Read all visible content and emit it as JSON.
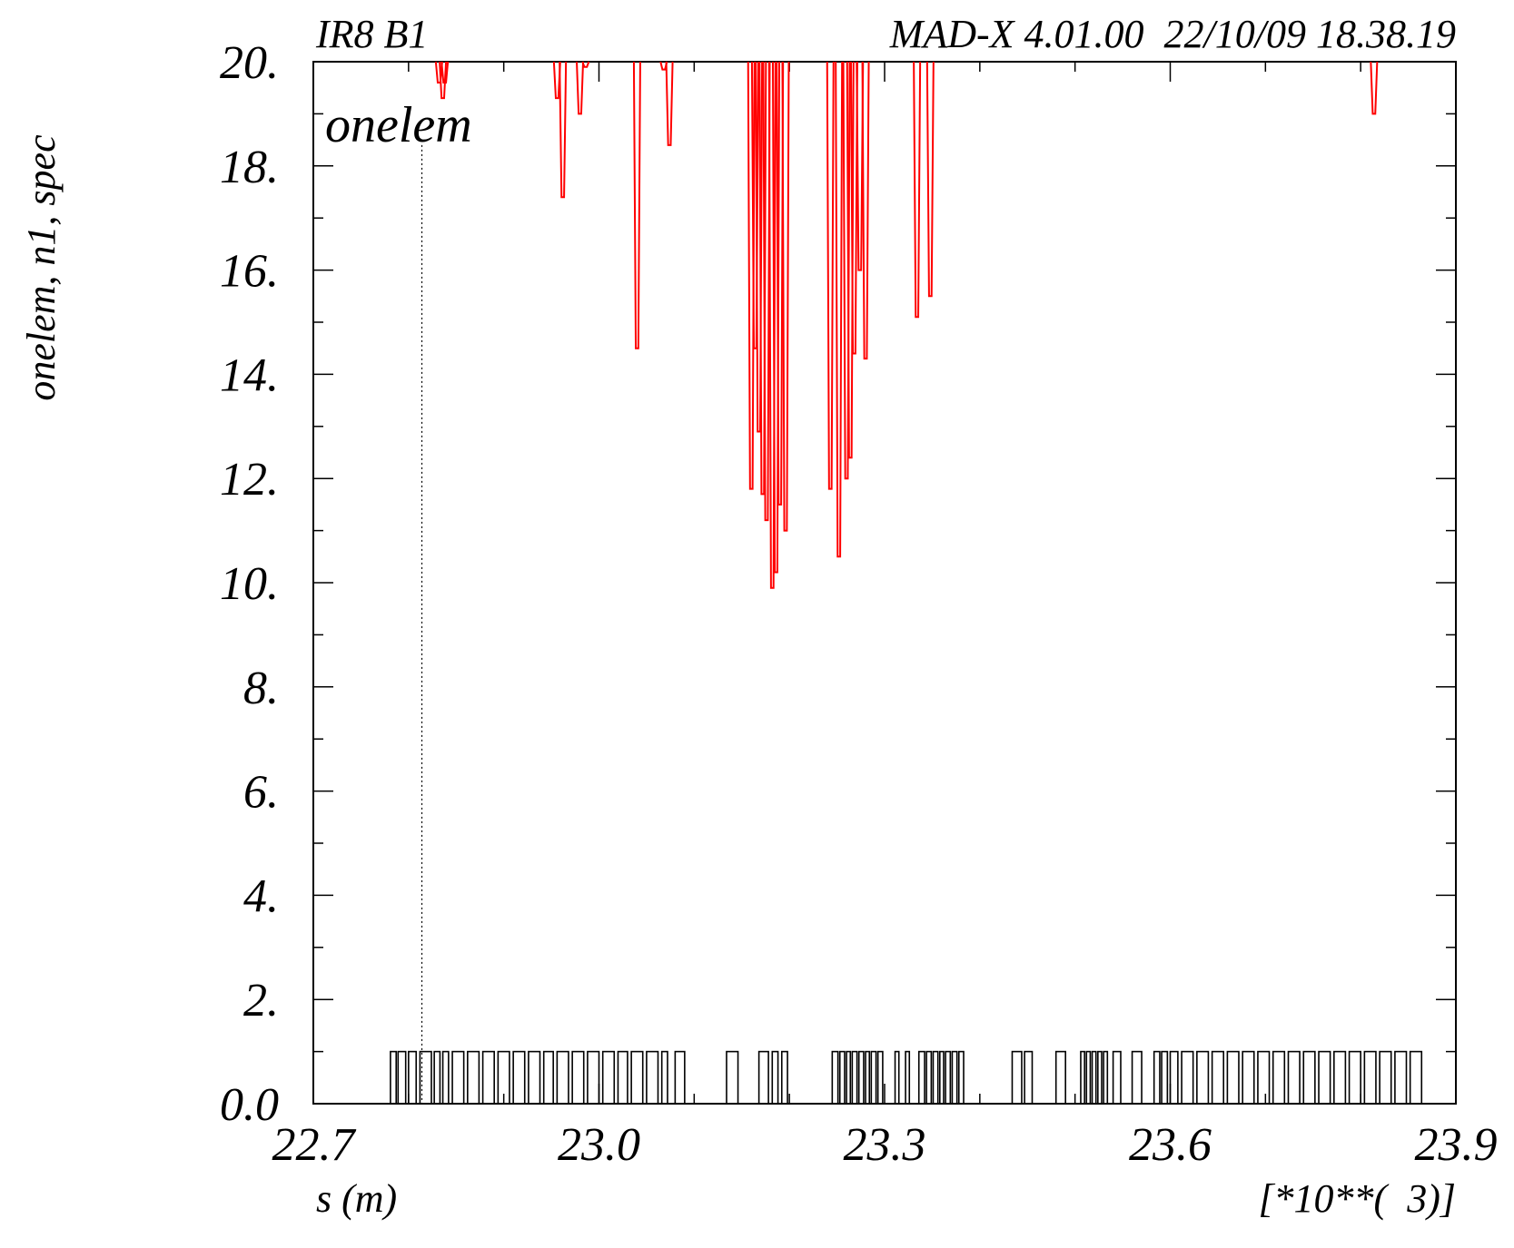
{
  "header": {
    "left_label": "IR8 B1",
    "right_label": "MAD-X 4.01.00  22/10/09 18.38.19"
  },
  "chart_data": {
    "type": "line",
    "title": "",
    "annotation": "onelem",
    "xlabel": "s (m)",
    "ylabel": "onelem, n1, spec",
    "x_scale_label": "[*10**(  3)]",
    "xlim": [
      22.7,
      23.9
    ],
    "ylim": [
      0,
      20
    ],
    "x_ticks": [
      "22.7",
      "23.0",
      "23.3",
      "23.6",
      "23.9"
    ],
    "x_tick_values": [
      22.7,
      23.0,
      23.3,
      23.6,
      23.9
    ],
    "y_ticks": [
      "0.0",
      "2.",
      "4.",
      "6.",
      "8.",
      "10.",
      "12.",
      "14.",
      "16.",
      "18.",
      "20."
    ],
    "y_tick_values": [
      0,
      2,
      4,
      6,
      8,
      10,
      12,
      14,
      16,
      18,
      20
    ],
    "grid": false,
    "marker_line_x": 22.814,
    "colors": {
      "n1": "#ff0000",
      "onelem": "#000000",
      "axes": "#000000"
    },
    "series": [
      {
        "key": "n1",
        "dips": [
          [
            22.832,
            19.6
          ],
          [
            22.836,
            19.3
          ],
          [
            22.838,
            19.6
          ],
          [
            22.956,
            19.3
          ],
          [
            22.962,
            17.4
          ],
          [
            22.98,
            19.0
          ],
          [
            22.986,
            19.9
          ],
          [
            23.04,
            14.5
          ],
          [
            23.068,
            19.85
          ],
          [
            23.074,
            18.4
          ],
          [
            23.16,
            11.8
          ],
          [
            23.164,
            14.5
          ],
          [
            23.168,
            12.9
          ],
          [
            23.172,
            11.7
          ],
          [
            23.176,
            11.2
          ],
          [
            23.182,
            9.9
          ],
          [
            23.186,
            10.2
          ],
          [
            23.19,
            11.5
          ],
          [
            23.196,
            11.0
          ],
          [
            23.243,
            11.8
          ],
          [
            23.252,
            10.5
          ],
          [
            23.26,
            12.0
          ],
          [
            23.264,
            12.4
          ],
          [
            23.268,
            14.4
          ],
          [
            23.274,
            16.0
          ],
          [
            23.28,
            14.3
          ],
          [
            23.334,
            15.1
          ],
          [
            23.348,
            15.5
          ]
        ],
        "extra_dips": [
          [
            23.814,
            19.0
          ]
        ]
      },
      {
        "key": "onelem",
        "element_spans": [
          [
            22.781,
            22.787
          ],
          [
            22.789,
            22.797
          ],
          [
            22.8,
            22.808
          ],
          [
            22.812,
            22.824
          ],
          [
            22.827,
            22.833
          ],
          [
            22.836,
            22.842
          ],
          [
            22.846,
            22.858
          ],
          [
            22.862,
            22.874
          ],
          [
            22.878,
            22.89
          ],
          [
            22.894,
            22.906
          ],
          [
            22.91,
            22.922
          ],
          [
            22.926,
            22.938
          ],
          [
            22.942,
            22.952
          ],
          [
            22.956,
            22.968
          ],
          [
            22.972,
            22.984
          ],
          [
            22.988,
            23.0
          ],
          [
            23.004,
            23.016
          ],
          [
            23.02,
            23.03
          ],
          [
            23.034,
            23.046
          ],
          [
            23.05,
            23.062
          ],
          [
            23.066,
            23.072
          ],
          [
            23.08,
            23.09
          ],
          [
            23.134,
            23.146
          ],
          [
            23.168,
            23.178
          ],
          [
            23.182,
            23.188
          ],
          [
            23.192,
            23.198
          ],
          [
            23.245,
            23.251
          ],
          [
            23.253,
            23.258
          ],
          [
            23.26,
            23.264
          ],
          [
            23.266,
            23.271
          ],
          [
            23.273,
            23.278
          ],
          [
            23.28,
            23.284
          ],
          [
            23.286,
            23.291
          ],
          [
            23.293,
            23.298
          ],
          [
            23.311,
            23.315
          ],
          [
            23.322,
            23.326
          ],
          [
            23.336,
            23.342
          ],
          [
            23.344,
            23.349
          ],
          [
            23.351,
            23.356
          ],
          [
            23.358,
            23.362
          ],
          [
            23.364,
            23.369
          ],
          [
            23.371,
            23.376
          ],
          [
            23.378,
            23.383
          ],
          [
            23.434,
            23.444
          ],
          [
            23.447,
            23.455
          ],
          [
            23.48,
            23.49
          ],
          [
            23.506,
            23.51
          ],
          [
            23.512,
            23.516
          ],
          [
            23.518,
            23.522
          ],
          [
            23.524,
            23.528
          ],
          [
            23.53,
            23.534
          ],
          [
            23.54,
            23.548
          ],
          [
            23.56,
            23.57
          ],
          [
            23.583,
            23.589
          ],
          [
            23.591,
            23.597
          ],
          [
            23.6,
            23.608
          ],
          [
            23.612,
            23.624
          ],
          [
            23.628,
            23.64
          ],
          [
            23.644,
            23.656
          ],
          [
            23.66,
            23.672
          ],
          [
            23.676,
            23.688
          ],
          [
            23.692,
            23.704
          ],
          [
            23.708,
            23.72
          ],
          [
            23.724,
            23.736
          ],
          [
            23.74,
            23.752
          ],
          [
            23.756,
            23.768
          ],
          [
            23.772,
            23.784
          ],
          [
            23.788,
            23.8
          ],
          [
            23.804,
            23.816
          ],
          [
            23.82,
            23.832
          ],
          [
            23.836,
            23.848
          ],
          [
            23.852,
            23.864
          ]
        ],
        "element_height": 1.0
      }
    ]
  }
}
